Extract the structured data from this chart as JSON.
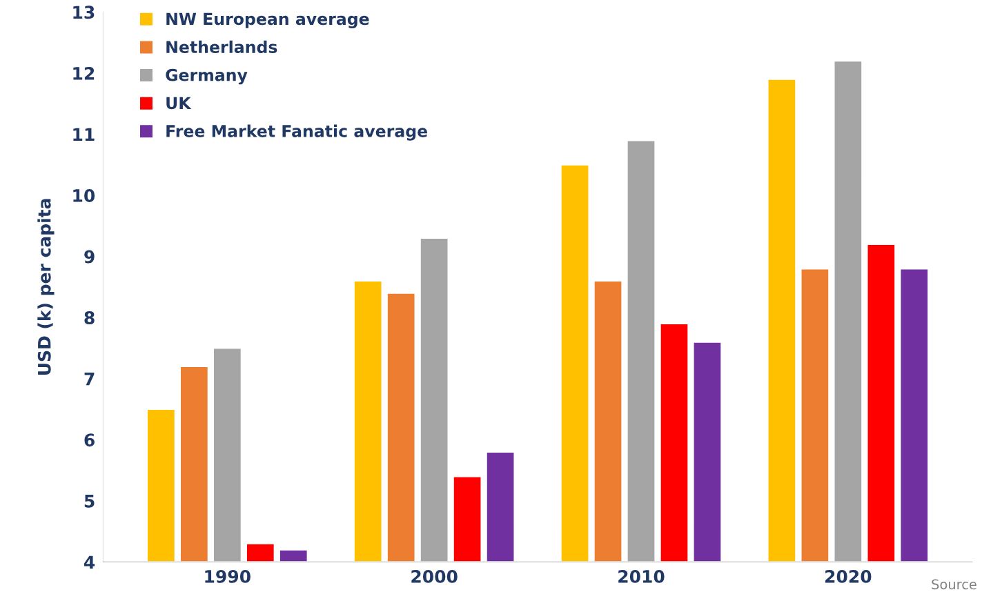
{
  "chart_data": {
    "type": "bar",
    "ylabel": "USD (k) per capita",
    "categories": [
      "1990",
      "2000",
      "2010",
      "2020"
    ],
    "series": [
      {
        "name": "NW European average",
        "color": "#ffc000",
        "values": [
          6.5,
          8.6,
          10.5,
          11.9
        ]
      },
      {
        "name": "Netherlands",
        "color": "#ed7d31",
        "values": [
          7.2,
          8.4,
          8.6,
          8.8
        ]
      },
      {
        "name": "Germany",
        "color": "#a5a5a5",
        "values": [
          7.5,
          9.3,
          10.9,
          12.2
        ]
      },
      {
        "name": "UK",
        "color": "#ff0000",
        "values": [
          4.3,
          5.4,
          7.9,
          9.2
        ]
      },
      {
        "name": "Free Market Fanatic average",
        "color": "#7030a0",
        "values": [
          4.2,
          5.8,
          7.6,
          8.8
        ]
      }
    ],
    "ylim": [
      4,
      13
    ],
    "yticks": [
      4,
      5,
      6,
      7,
      8,
      9,
      10,
      11,
      12,
      13
    ],
    "grid": false,
    "legend": "top left",
    "annotations": [
      "Source"
    ]
  }
}
